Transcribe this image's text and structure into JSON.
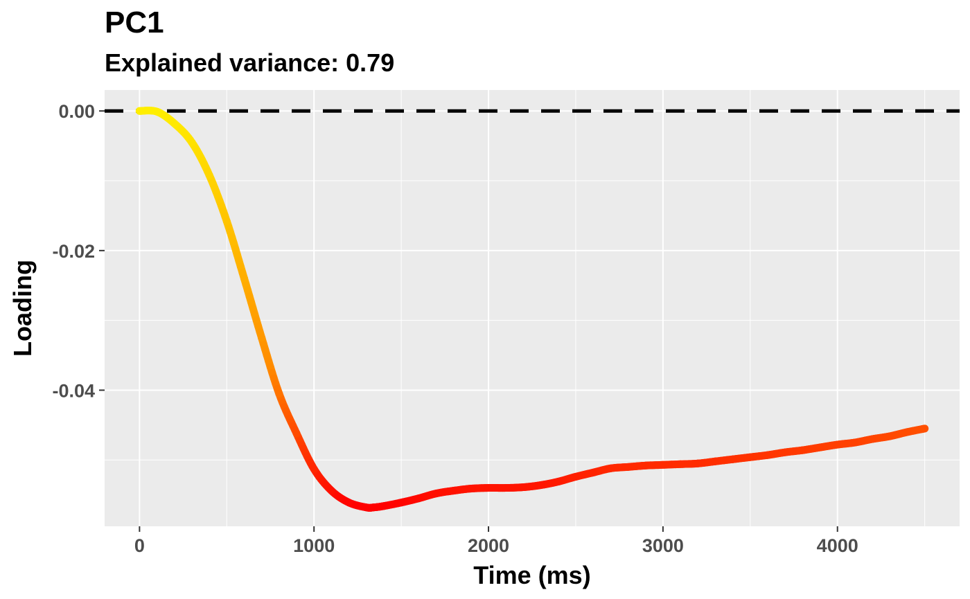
{
  "chart_data": {
    "type": "line",
    "title": "PC1",
    "subtitle": "Explained variance: 0.79",
    "xlabel": "Time (ms)",
    "ylabel": "Loading",
    "xlim": [
      -200,
      4700
    ],
    "ylim": [
      -0.0595,
      0.003
    ],
    "xticks": [
      0,
      1000,
      2000,
      3000,
      4000
    ],
    "xtick_labels": [
      "0",
      "1000",
      "2000",
      "3000",
      "4000"
    ],
    "yticks": [
      0.0,
      -0.02,
      -0.04
    ],
    "ytick_labels": [
      "0.00",
      "-0.02",
      "-0.04"
    ],
    "grid": true,
    "reference_line": {
      "y": 0.0,
      "style": "dashed",
      "color": "#000000"
    },
    "color_scale": {
      "low": "#ff0000",
      "mid": "#ff8c00",
      "high": "#ffee00"
    },
    "series": [
      {
        "x": [
          0,
          100,
          200,
          300,
          400,
          500,
          600,
          700,
          800,
          900,
          1000,
          1100,
          1200,
          1300,
          1340,
          1400,
          1500,
          1600,
          1700,
          1800,
          1900,
          2000,
          2100,
          2200,
          2300,
          2400,
          2500,
          2600,
          2700,
          2800,
          2900,
          3000,
          3100,
          3200,
          3300,
          3400,
          3500,
          3600,
          3700,
          3800,
          3900,
          4000,
          4100,
          4200,
          4300,
          4400,
          4500
        ],
        "y": [
          0.0,
          -0.0001,
          -0.0018,
          -0.0045,
          -0.0092,
          -0.0158,
          -0.024,
          -0.0325,
          -0.0405,
          -0.0462,
          -0.0513,
          -0.0544,
          -0.0561,
          -0.0568,
          -0.0568,
          -0.0566,
          -0.0561,
          -0.0555,
          -0.0548,
          -0.0544,
          -0.0541,
          -0.054,
          -0.054,
          -0.0539,
          -0.0536,
          -0.0531,
          -0.0524,
          -0.0518,
          -0.0512,
          -0.051,
          -0.0508,
          -0.0507,
          -0.0506,
          -0.0505,
          -0.0502,
          -0.0499,
          -0.0496,
          -0.0493,
          -0.0489,
          -0.0486,
          -0.0482,
          -0.0478,
          -0.0475,
          -0.047,
          -0.0466,
          -0.046,
          -0.0455
        ]
      }
    ]
  }
}
